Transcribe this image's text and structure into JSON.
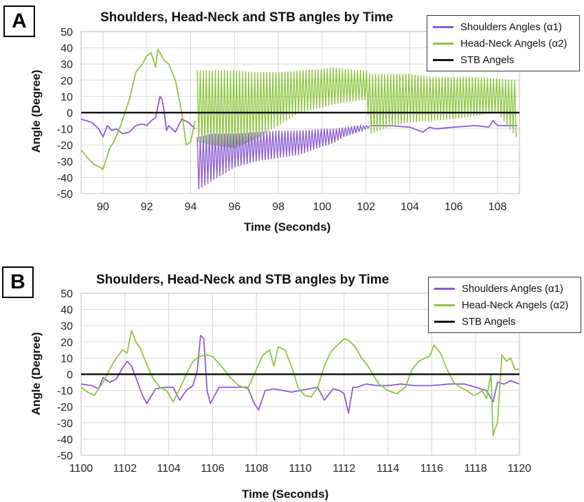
{
  "colors": {
    "shoulders": "#8b5bd6",
    "head_neck": "#8cc63f",
    "stb": "#111111",
    "grid": "#d9d9d9"
  },
  "legend_labels": {
    "shoulders": "Shoulders Angles (α1)",
    "head_neck": "Head-Neck Angels (α2)",
    "stb": "STB Angels"
  },
  "panels": [
    {
      "letter": "A",
      "title": "Shoulders, Head-Neck and STB angles by Time",
      "xlabel": "Time (Seconds)",
      "ylabel": "Angle (Degree)"
    },
    {
      "letter": "B",
      "title": "Shoulders, Head-Neck and STB angles by Time",
      "xlabel": "Time (Seconds)",
      "ylabel": "Angle (Degree)"
    }
  ],
  "chart_data": [
    {
      "type": "line",
      "title": "Shoulders, Head-Neck and STB angles by Time",
      "xlabel": "Time (Seconds)",
      "ylabel": "Angle (Degree)",
      "xlim": [
        89,
        109
      ],
      "ylim": [
        -50,
        50
      ],
      "x_ticks": [
        90,
        92,
        94,
        96,
        98,
        100,
        102,
        104,
        106,
        108
      ],
      "y_ticks": [
        50,
        40,
        30,
        20,
        10,
        0,
        -10,
        -20,
        -30,
        -40,
        -50
      ],
      "grid": true,
      "legend_position": "top-right",
      "series": [
        {
          "name": "Shoulders Angles (α1)",
          "color_key": "shoulders",
          "style": "line",
          "x": [
            89.0,
            89.5,
            89.8,
            90.0,
            90.2,
            90.4,
            90.6,
            90.9,
            91.2,
            91.5,
            91.8,
            92.0,
            92.2,
            92.4,
            92.6,
            92.7,
            92.8,
            92.9,
            93.0,
            93.3,
            93.6,
            93.9,
            94.2
          ],
          "y": [
            -4,
            -6,
            -10,
            -15,
            -8,
            -11,
            -10,
            -13,
            -12,
            -8,
            -7,
            -8,
            -5,
            -3,
            10,
            8,
            0,
            -11,
            -8,
            -12,
            -4,
            -6,
            -10
          ]
        },
        {
          "name": "Shoulders Angles (α1) oscillation",
          "color_key": "shoulders",
          "style": "band",
          "x": [
            94.3,
            95.0,
            96.0,
            97.0,
            98.0,
            99.0,
            100.0,
            100.5,
            101.0,
            101.5,
            102.0,
            102.2
          ],
          "upper": [
            -15,
            -13,
            -13,
            -12,
            -11,
            -11,
            -10,
            -10,
            -9,
            -8,
            -8,
            -8
          ],
          "lower": [
            -48,
            -42,
            -34,
            -30,
            -28,
            -26,
            -21,
            -19,
            -15,
            -13,
            -10,
            -9
          ]
        },
        {
          "name": "Shoulders Angles (α1) late",
          "color_key": "shoulders",
          "style": "line",
          "x": [
            102.2,
            103.0,
            104.0,
            104.6,
            104.9,
            105.2,
            106.0,
            107.0,
            107.6,
            107.8,
            108.0,
            108.9
          ],
          "y": [
            -8,
            -8,
            -9,
            -12,
            -9,
            -10,
            -9,
            -8,
            -9,
            -5,
            -8,
            -8
          ]
        },
        {
          "name": "Head-Neck Angels (α2)",
          "color_key": "head_neck",
          "style": "line",
          "x": [
            89.0,
            89.3,
            89.6,
            89.9,
            90.0,
            90.3,
            90.5,
            90.8,
            91.0,
            91.2,
            91.5,
            91.8,
            92.0,
            92.2,
            92.4,
            92.5,
            92.6,
            92.8,
            93.0,
            93.3,
            93.6,
            93.8,
            94.0,
            94.2
          ],
          "y": [
            -23,
            -28,
            -32,
            -34,
            -35,
            -22,
            -18,
            -8,
            0,
            8,
            25,
            30,
            35,
            37,
            28,
            39,
            37,
            32,
            30,
            20,
            0,
            -20,
            -18,
            -5
          ]
        },
        {
          "name": "Head-Neck Angels (α2) oscillation",
          "color_key": "head_neck",
          "style": "band",
          "x": [
            94.3,
            95.0,
            96.0,
            97.0,
            98.0,
            99.0,
            100.0,
            100.5,
            101.0,
            102.0,
            102.2,
            103.0,
            104.0,
            105.0,
            106.0,
            107.0,
            108.0,
            108.9
          ],
          "upper": [
            26,
            26,
            26,
            25,
            25,
            26,
            27,
            28,
            27,
            26,
            24,
            24,
            24,
            22,
            22,
            22,
            21,
            20
          ],
          "lower": [
            -18,
            -20,
            -22,
            -16,
            -8,
            0,
            3,
            5,
            6,
            8,
            -13,
            -9,
            -6,
            -5,
            -4,
            -2,
            0,
            -16
          ]
        },
        {
          "name": "STB Angels",
          "color_key": "stb",
          "style": "line",
          "x": [
            89,
            109
          ],
          "y": [
            0,
            0
          ]
        }
      ]
    },
    {
      "type": "line",
      "title": "Shoulders, Head-Neck and STB angles by Time",
      "xlabel": "Time (Seconds)",
      "ylabel": "Angle (Degree)",
      "xlim": [
        1100,
        1120
      ],
      "ylim": [
        -50,
        50
      ],
      "x_ticks": [
        1100,
        1102,
        1104,
        1106,
        1108,
        1110,
        1112,
        1114,
        1116,
        1118,
        1120
      ],
      "y_ticks": [
        50,
        40,
        30,
        20,
        10,
        0,
        -10,
        -20,
        -30,
        -40,
        -50
      ],
      "grid": true,
      "legend_position": "top-right",
      "series": [
        {
          "name": "Shoulders Angles (α1)",
          "color_key": "shoulders",
          "style": "line",
          "x": [
            1100.0,
            1100.5,
            1100.8,
            1101.0,
            1101.3,
            1101.6,
            1101.9,
            1102.1,
            1102.3,
            1102.5,
            1102.8,
            1103.0,
            1103.4,
            1103.8,
            1104.2,
            1104.5,
            1104.8,
            1105.1,
            1105.3,
            1105.45,
            1105.6,
            1105.75,
            1105.9,
            1106.3,
            1107.0,
            1107.6,
            1107.9,
            1108.1,
            1108.4,
            1108.8,
            1109.2,
            1109.6,
            1110.0,
            1110.4,
            1110.8,
            1111.1,
            1111.5,
            1111.8,
            1112.0,
            1112.2,
            1112.4,
            1112.6,
            1113.0,
            1113.5,
            1114.0,
            1114.6,
            1115.2,
            1116.0,
            1116.8,
            1117.5,
            1118.0,
            1118.5,
            1118.8,
            1119.0,
            1119.3,
            1119.6,
            1120.0
          ],
          "y": [
            -6,
            -7,
            -9,
            -2,
            -5,
            -3,
            4,
            8,
            5,
            -2,
            -13,
            -18,
            -9,
            -8,
            -8,
            -16,
            -10,
            -7,
            2,
            24,
            22,
            -10,
            -18,
            -8,
            -8,
            -8,
            -18,
            -22,
            -10,
            -9,
            -10,
            -11,
            -10,
            -9,
            -8,
            -16,
            -9,
            -10,
            -12,
            -24,
            -8,
            -8,
            -6,
            -7,
            -7,
            -6,
            -7,
            -7,
            -6,
            -6,
            -8,
            -10,
            -17,
            -5,
            -6,
            -4,
            -6
          ]
        },
        {
          "name": "Head-Neck Angels (α2)",
          "color_key": "head_neck",
          "style": "line",
          "x": [
            1100.0,
            1100.3,
            1100.6,
            1101.0,
            1101.3,
            1101.6,
            1101.9,
            1102.1,
            1102.3,
            1102.5,
            1102.7,
            1103.0,
            1103.3,
            1103.6,
            1103.9,
            1104.2,
            1104.5,
            1104.8,
            1105.1,
            1105.4,
            1105.7,
            1106.0,
            1106.4,
            1106.8,
            1107.2,
            1107.6,
            1108.0,
            1108.3,
            1108.6,
            1108.8,
            1109.0,
            1109.3,
            1109.6,
            1109.9,
            1110.2,
            1110.5,
            1110.8,
            1111.1,
            1111.4,
            1111.7,
            1112.0,
            1112.2,
            1112.5,
            1112.8,
            1113.1,
            1113.3,
            1113.6,
            1114.0,
            1114.4,
            1114.8,
            1115.1,
            1115.4,
            1115.7,
            1115.9,
            1116.1,
            1116.4,
            1116.7,
            1117.0,
            1117.3,
            1117.6,
            1117.9,
            1118.1,
            1118.3,
            1118.5,
            1118.7,
            1118.8,
            1118.85,
            1119.0,
            1119.1,
            1119.2,
            1119.4,
            1119.6,
            1119.8,
            1120.0
          ],
          "y": [
            -8,
            -11,
            -13,
            -5,
            3,
            10,
            15,
            13,
            27,
            20,
            16,
            6,
            -3,
            -8,
            -10,
            -17,
            -9,
            0,
            8,
            11,
            12,
            11,
            5,
            -2,
            -7,
            -9,
            3,
            12,
            15,
            5,
            17,
            15,
            5,
            -8,
            -13,
            -14,
            -8,
            5,
            14,
            18,
            22,
            21,
            17,
            10,
            5,
            0,
            -6,
            -10,
            -12,
            -8,
            3,
            8,
            10,
            11,
            18,
            13,
            3,
            -5,
            -8,
            -10,
            -13,
            -12,
            -10,
            -15,
            0,
            -38,
            -35,
            -30,
            -8,
            12,
            8,
            10,
            3,
            3
          ]
        },
        {
          "name": "STB Angels",
          "color_key": "stb",
          "style": "line",
          "x": [
            1100,
            1120
          ],
          "y": [
            0,
            0
          ]
        }
      ]
    }
  ]
}
